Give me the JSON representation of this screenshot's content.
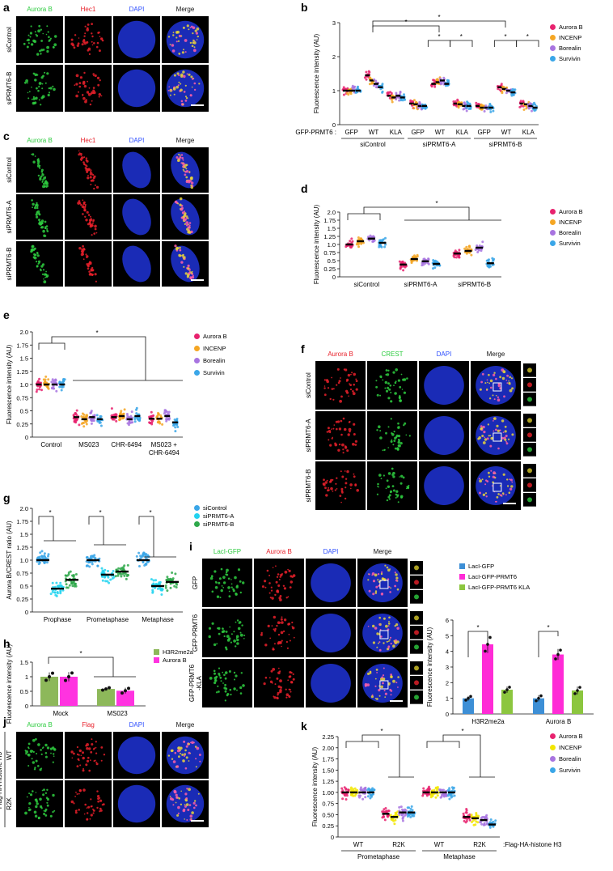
{
  "letters": [
    "a",
    "b",
    "c",
    "d",
    "e",
    "f",
    "g",
    "h",
    "i",
    "j",
    "k"
  ],
  "colors": {
    "aurora": "#e8226e",
    "incenp": "#f5a623",
    "borealin": "#a874e0",
    "survivin": "#3aa6e8",
    "green_ch": "#2ecc40",
    "red_ch": "#e8202a",
    "blue_ch": "#2b4cff",
    "cyan": "#22d3f0",
    "green_pt": "#2ea84a",
    "lacl": "#3d8fd6",
    "magenta": "#ff2bd6",
    "lime": "#8cc63f",
    "h3": "#8db85a",
    "mag2": "#ff33e0"
  },
  "mic": {
    "a": {
      "headers": [
        "Aurora B",
        "Hec1",
        "DAPI",
        "Merge"
      ],
      "rows": [
        "siControl",
        "siPRMT6-B"
      ]
    },
    "c": {
      "headers": [
        "Aurora B",
        "Hec1",
        "DAPI",
        "Merge"
      ],
      "rows": [
        "siControl",
        "siPRMT6-A",
        "siPRMT6-B"
      ]
    },
    "f": {
      "headers": [
        "Aurora B",
        "CREST",
        "DAPI",
        "Merge"
      ],
      "rows": [
        "siControl",
        "siPRMT6-A",
        "siPRMT6-B"
      ]
    },
    "i": {
      "headers": [
        "LacI-GFP",
        "Aurora B",
        "DAPI",
        "Merge"
      ],
      "rows": [
        "GFP",
        "GFP-PRMT6",
        "GFP-PRMT6\n-KLA"
      ]
    },
    "j": {
      "headers": [
        "Aurora B",
        "Flag",
        "DAPI",
        "Merge"
      ],
      "rows": [
        "WT",
        "R2K"
      ],
      "side": "Flag-HA-histone H3"
    }
  },
  "star": "*",
  "legend4": [
    "Aurora B",
    "INCENP",
    "Borealin",
    "Survivin"
  ],
  "legend_g": [
    "siControl",
    "siPRMT6-A",
    "siPRMT6-B"
  ],
  "legend_h": [
    "H3R2me2a",
    "Aurora B"
  ],
  "legend_i": [
    "LacI-GFP",
    "LacI-GFP-PRMT6",
    "LacI-GFP-PRMT6 KLA"
  ],
  "chart_data": [
    {
      "panel": "b",
      "type": "scatter",
      "ylabel": "Fluorescence intensity (AU)",
      "ylim": [
        0,
        3
      ],
      "yticks": [
        0,
        1,
        2,
        3
      ],
      "row_label": "GFP-PRMT6 :",
      "groups": [
        "GFP",
        "WT",
        "KLA",
        "GFP",
        "WT",
        "KLA",
        "GFP",
        "WT",
        "KLA"
      ],
      "conditions": [
        "siControl",
        "siPRMT6-A",
        "siPRMT6-B"
      ],
      "series": [
        {
          "name": "Aurora B",
          "medians": [
            1.0,
            1.45,
            0.85,
            0.62,
            1.2,
            0.62,
            0.55,
            1.1,
            0.62
          ]
        },
        {
          "name": "INCENP",
          "medians": [
            1.0,
            1.3,
            0.8,
            0.6,
            1.25,
            0.6,
            0.5,
            1.05,
            0.6
          ]
        },
        {
          "name": "Borealin",
          "medians": [
            1.0,
            1.2,
            0.85,
            0.55,
            1.3,
            0.55,
            0.5,
            1.0,
            0.55
          ]
        },
        {
          "name": "Survivin",
          "medians": [
            1.0,
            1.1,
            0.8,
            0.55,
            1.2,
            0.55,
            0.5,
            0.95,
            0.5
          ]
        }
      ]
    },
    {
      "panel": "d",
      "type": "scatter",
      "ylabel": "Fluorescence intensity (AU)",
      "ylim": [
        0,
        2.0
      ],
      "yticks": [
        "0",
        "0.25",
        "0.5",
        "0.75",
        "1.0",
        "1.25",
        "1.5",
        "1.75",
        "2.0"
      ],
      "categories": [
        "siControl",
        "siPRMT6-A",
        "siPRMT6-B"
      ],
      "series": [
        {
          "name": "Aurora B",
          "medians": [
            1.0,
            0.38,
            0.72
          ]
        },
        {
          "name": "INCENP",
          "medians": [
            1.1,
            0.55,
            0.8
          ]
        },
        {
          "name": "Borealin",
          "medians": [
            1.18,
            0.48,
            0.9
          ]
        },
        {
          "name": "Survivin",
          "medians": [
            1.05,
            0.4,
            0.42
          ]
        }
      ]
    },
    {
      "panel": "e",
      "type": "scatter",
      "ylabel": "Fluorescence intensity (AU)",
      "ylim": [
        0,
        2.0
      ],
      "yticks": [
        "0",
        "0.25",
        "0.5",
        "0.75",
        "1.0",
        "1.25",
        "1.5",
        "1.75",
        "2.0"
      ],
      "categories": [
        "Control",
        "MS023",
        "CHR-6494",
        "MS023 +\nCHR-6494"
      ],
      "series": [
        {
          "name": "Aurora B",
          "medians": [
            1.0,
            0.38,
            0.38,
            0.35
          ]
        },
        {
          "name": "INCENP",
          "medians": [
            1.0,
            0.34,
            0.4,
            0.35
          ]
        },
        {
          "name": "Borealin",
          "medians": [
            1.0,
            0.38,
            0.34,
            0.4
          ]
        },
        {
          "name": "Survivin",
          "medians": [
            1.0,
            0.34,
            0.4,
            0.28
          ]
        }
      ]
    },
    {
      "panel": "g",
      "type": "scatter",
      "ylabel": "Aurora B/CREST ratio (AU)",
      "ylim": [
        0,
        2.0
      ],
      "yticks": [
        "0",
        "0.25",
        "0.5",
        "0.75",
        "1.0",
        "1.25",
        "1.5",
        "1.75",
        "2.0"
      ],
      "categories": [
        "Prophase",
        "Prometaphase",
        "Metaphase"
      ],
      "series": [
        {
          "name": "siControl",
          "medians": [
            1.0,
            1.0,
            1.0
          ]
        },
        {
          "name": "siPRMT6-A",
          "medians": [
            0.45,
            0.72,
            0.5
          ]
        },
        {
          "name": "siPRMT6-B",
          "medians": [
            0.62,
            0.78,
            0.58
          ]
        }
      ]
    },
    {
      "panel": "h",
      "type": "bar",
      "ylabel": "Fluorescence intensity (AU)",
      "ylim": [
        0,
        1.5
      ],
      "yticks": [
        "0",
        "0.5",
        "1",
        "1.5"
      ],
      "categories": [
        "Mock",
        "MS023"
      ],
      "series": [
        {
          "name": "H3R2me2a",
          "values": [
            1.0,
            0.58
          ],
          "errors": [
            0.15,
            0.05
          ]
        },
        {
          "name": "Aurora B",
          "values": [
            1.0,
            0.52
          ],
          "errors": [
            0.16,
            0.1
          ]
        }
      ]
    },
    {
      "panel": "i",
      "type": "bar",
      "ylabel": "Fluorescence intensity (AU)",
      "ylim": [
        0,
        6
      ],
      "yticks": [
        "0",
        "1",
        "2",
        "3",
        "4",
        "5",
        "6"
      ],
      "categories": [
        "H3R2me2a",
        "Aurora B"
      ],
      "series": [
        {
          "name": "LacI-GFP",
          "values": [
            1.0,
            1.0
          ],
          "errors": [
            0.15,
            0.2
          ]
        },
        {
          "name": "LacI-GFP-PRMT6",
          "values": [
            4.45,
            3.8
          ],
          "errors": [
            0.55,
            0.35
          ]
        },
        {
          "name": "LacI-GFP-PRMT6 KLA",
          "values": [
            1.55,
            1.5
          ],
          "errors": [
            0.2,
            0.25
          ]
        }
      ]
    },
    {
      "panel": "k",
      "type": "scatter",
      "ylabel": "Fluorescence intensity (AU)",
      "ylim": [
        0,
        2.25
      ],
      "yticks": [
        "0",
        "0.25",
        "0.50",
        "0.75",
        "1.00",
        "1.25",
        "1.50",
        "1.75",
        "2.00",
        "2.25"
      ],
      "groups": [
        "WT",
        "R2K",
        "WT",
        "R2K"
      ],
      "conditions": [
        "Prometaphase",
        "Metaphase"
      ],
      "suffix": ":Flag-HA-histone H3",
      "series": [
        {
          "name": "Aurora B",
          "medians": [
            1.0,
            0.52,
            1.0,
            0.45
          ]
        },
        {
          "name": "INCENP",
          "medians": [
            1.0,
            0.45,
            1.0,
            0.42
          ]
        },
        {
          "name": "Borealin",
          "medians": [
            1.0,
            0.55,
            1.0,
            0.38
          ]
        },
        {
          "name": "Survivin",
          "medians": [
            1.0,
            0.55,
            1.0,
            0.28
          ]
        }
      ]
    }
  ]
}
